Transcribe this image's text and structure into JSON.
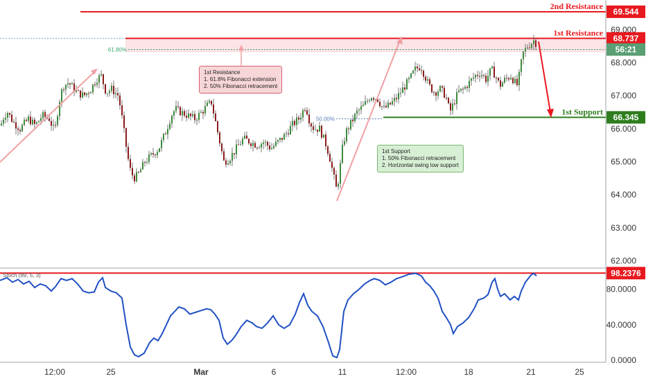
{
  "chart_data": [
    {
      "type": "candlestick",
      "panel": "price",
      "x_ticks": [
        "12:00",
        "25",
        "Mar",
        "6",
        "11",
        "12:00",
        "18",
        "21",
        "25"
      ],
      "y_ticks": [
        "62.000",
        "63.000",
        "64.000",
        "65.000",
        "66.000",
        "67.000",
        "68.000",
        "69.000"
      ],
      "ylim": [
        61.8,
        69.9
      ],
      "grid": false,
      "close_path": [
        [
          0,
          66.1
        ],
        [
          5,
          66.4
        ],
        [
          10,
          66.5
        ],
        [
          18,
          66.2
        ],
        [
          28,
          66.0
        ],
        [
          40,
          66.3
        ],
        [
          50,
          66.1
        ],
        [
          60,
          66.4
        ],
        [
          70,
          66.3
        ],
        [
          78,
          65.9
        ],
        [
          84,
          66.8
        ],
        [
          90,
          67.3
        ],
        [
          98,
          67.4
        ],
        [
          110,
          67.1
        ],
        [
          120,
          67.0
        ],
        [
          130,
          67.2
        ],
        [
          138,
          67.5
        ],
        [
          145,
          67.6
        ],
        [
          152,
          67.1
        ],
        [
          160,
          67.2
        ],
        [
          170,
          67.0
        ],
        [
          176,
          66.2
        ],
        [
          180,
          65.6
        ],
        [
          186,
          64.8
        ],
        [
          192,
          64.5
        ],
        [
          198,
          64.6
        ],
        [
          208,
          65.0
        ],
        [
          218,
          65.2
        ],
        [
          228,
          65.4
        ],
        [
          238,
          65.9
        ],
        [
          246,
          66.4
        ],
        [
          252,
          66.6
        ],
        [
          260,
          66.5
        ],
        [
          270,
          66.4
        ],
        [
          280,
          66.3
        ],
        [
          290,
          66.5
        ],
        [
          298,
          66.7
        ],
        [
          304,
          66.8
        ],
        [
          310,
          66.2
        ],
        [
          316,
          65.6
        ],
        [
          322,
          65.0
        ],
        [
          330,
          65.1
        ],
        [
          340,
          65.4
        ],
        [
          350,
          65.7
        ],
        [
          360,
          65.6
        ],
        [
          370,
          65.5
        ],
        [
          380,
          65.6
        ],
        [
          390,
          65.4
        ],
        [
          400,
          65.6
        ],
        [
          410,
          65.8
        ],
        [
          420,
          66.1
        ],
        [
          430,
          66.3
        ],
        [
          440,
          66.7
        ],
        [
          446,
          66.2
        ],
        [
          452,
          66.0
        ],
        [
          460,
          66.0
        ],
        [
          468,
          65.6
        ],
        [
          474,
          65.2
        ],
        [
          480,
          64.6
        ],
        [
          484,
          64.2
        ],
        [
          488,
          64.5
        ],
        [
          492,
          65.3
        ],
        [
          498,
          65.9
        ],
        [
          506,
          66.2
        ],
        [
          514,
          66.5
        ],
        [
          524,
          66.7
        ],
        [
          534,
          67.0
        ],
        [
          544,
          66.9
        ],
        [
          552,
          66.6
        ],
        [
          560,
          66.7
        ],
        [
          570,
          66.9
        ],
        [
          580,
          67.2
        ],
        [
          590,
          67.5
        ],
        [
          598,
          67.8
        ],
        [
          606,
          67.9
        ],
        [
          612,
          67.6
        ],
        [
          618,
          67.3
        ],
        [
          626,
          67.1
        ],
        [
          634,
          67.2
        ],
        [
          642,
          67.0
        ],
        [
          648,
          66.5
        ],
        [
          654,
          66.8
        ],
        [
          660,
          67.1
        ],
        [
          668,
          67.2
        ],
        [
          676,
          67.4
        ],
        [
          684,
          67.6
        ],
        [
          692,
          67.7
        ],
        [
          700,
          67.5
        ],
        [
          708,
          67.8
        ],
        [
          714,
          67.6
        ],
        [
          720,
          67.3
        ],
        [
          728,
          67.5
        ],
        [
          736,
          67.6
        ],
        [
          742,
          67.4
        ],
        [
          746,
          67.3
        ],
        [
          750,
          67.9
        ],
        [
          754,
          68.3
        ],
        [
          760,
          68.5
        ],
        [
          766,
          68.6
        ],
        [
          770,
          68.7
        ],
        [
          774,
          68.5
        ]
      ],
      "levels": [
        {
          "name": "2nd Resistance",
          "value": "69.544",
          "color": "#e8191f"
        },
        {
          "name": "1st Resistance",
          "value": "68.737",
          "color": "#e8191f"
        },
        {
          "name": "1st Support",
          "value": "66.345",
          "color": "#2e7d1e"
        }
      ],
      "current_price_badge": {
        "label": "56:21",
        "value": 68.4,
        "color": "#5a9e74"
      },
      "fib_labels": [
        {
          "label": "61.80%",
          "value": 68.4
        },
        {
          "label": "50.00%",
          "value": 66.3
        }
      ],
      "annotations": {
        "resistance_note": [
          "1st Resistance",
          "1. 61.8% Fibonacci extension",
          "2. 50% Fibonacci retracement"
        ],
        "support_note": [
          "1st Support",
          "1. 50% Fibonacci retracement",
          "2. Horizontal swing low support"
        ]
      }
    },
    {
      "type": "line",
      "panel": "oscillator",
      "title": "Stoch (89, 5, 3)",
      "y_ticks": [
        "0.0000",
        "40.0000",
        "80.0000"
      ],
      "ylim": [
        0,
        100
      ],
      "level_badge": {
        "value": "98.2376",
        "color": "#e8191f"
      },
      "series": [
        {
          "color": "#1f4fc4",
          "points": [
            [
              0,
              90
            ],
            [
              10,
              93
            ],
            [
              18,
              88
            ],
            [
              26,
              91
            ],
            [
              34,
              86
            ],
            [
              42,
              89
            ],
            [
              50,
              82
            ],
            [
              58,
              86
            ],
            [
              66,
              84
            ],
            [
              74,
              78
            ],
            [
              80,
              83
            ],
            [
              88,
              92
            ],
            [
              96,
              90
            ],
            [
              104,
              92
            ],
            [
              112,
              86
            ],
            [
              120,
              78
            ],
            [
              128,
              76
            ],
            [
              136,
              77
            ],
            [
              142,
              88
            ],
            [
              148,
              93
            ],
            [
              152,
              82
            ],
            [
              160,
              78
            ],
            [
              168,
              76
            ],
            [
              176,
              70
            ],
            [
              182,
              40
            ],
            [
              188,
              15
            ],
            [
              194,
              6
            ],
            [
              200,
              4
            ],
            [
              208,
              8
            ],
            [
              216,
              20
            ],
            [
              222,
              25
            ],
            [
              228,
              22
            ],
            [
              234,
              30
            ],
            [
              240,
              40
            ],
            [
              246,
              50
            ],
            [
              252,
              55
            ],
            [
              258,
              60
            ],
            [
              266,
              58
            ],
            [
              274,
              52
            ],
            [
              282,
              54
            ],
            [
              290,
              56
            ],
            [
              298,
              58
            ],
            [
              304,
              57
            ],
            [
              310,
              52
            ],
            [
              316,
              45
            ],
            [
              322,
              25
            ],
            [
              328,
              18
            ],
            [
              334,
              22
            ],
            [
              340,
              28
            ],
            [
              348,
              38
            ],
            [
              356,
              45
            ],
            [
              364,
              42
            ],
            [
              370,
              38
            ],
            [
              378,
              36
            ],
            [
              386,
              42
            ],
            [
              394,
              50
            ],
            [
              402,
              40
            ],
            [
              410,
              36
            ],
            [
              418,
              40
            ],
            [
              426,
              52
            ],
            [
              432,
              65
            ],
            [
              438,
              75
            ],
            [
              444,
              62
            ],
            [
              450,
              55
            ],
            [
              458,
              50
            ],
            [
              466,
              38
            ],
            [
              474,
              20
            ],
            [
              480,
              5
            ],
            [
              486,
              3
            ],
            [
              490,
              12
            ],
            [
              496,
              55
            ],
            [
              502,
              68
            ],
            [
              510,
              75
            ],
            [
              518,
              80
            ],
            [
              526,
              86
            ],
            [
              534,
              90
            ],
            [
              540,
              92
            ],
            [
              548,
              90
            ],
            [
              556,
              85
            ],
            [
              564,
              88
            ],
            [
              572,
              92
            ],
            [
              580,
              94
            ],
            [
              590,
              97
            ],
            [
              600,
              98
            ],
            [
              608,
              95
            ],
            [
              614,
              88
            ],
            [
              620,
              84
            ],
            [
              626,
              78
            ],
            [
              632,
              70
            ],
            [
              638,
              55
            ],
            [
              644,
              48
            ],
            [
              650,
              40
            ],
            [
              654,
              30
            ],
            [
              660,
              38
            ],
            [
              668,
              42
            ],
            [
              676,
              48
            ],
            [
              684,
              58
            ],
            [
              690,
              68
            ],
            [
              698,
              70
            ],
            [
              704,
              74
            ],
            [
              710,
              88
            ],
            [
              714,
              92
            ],
            [
              718,
              80
            ],
            [
              722,
              72
            ],
            [
              728,
              75
            ],
            [
              736,
              68
            ],
            [
              742,
              72
            ],
            [
              748,
              68
            ],
            [
              752,
              78
            ],
            [
              758,
              88
            ],
            [
              766,
              96
            ],
            [
              770,
              98
            ],
            [
              774,
              95
            ]
          ]
        }
      ]
    }
  ]
}
